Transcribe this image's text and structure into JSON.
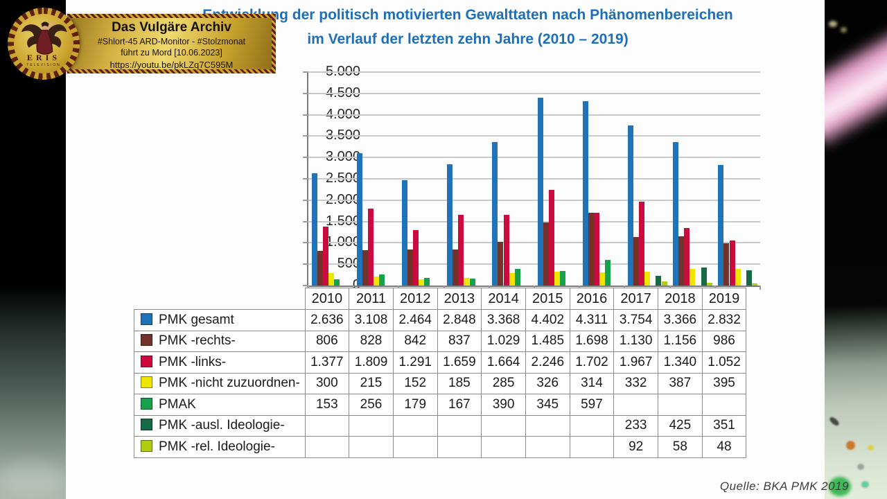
{
  "watermark": {
    "title": "Das Vulgäre Archiv",
    "subtitle": "#Shlort-45 ARD-Monitor - #Stolzmonat",
    "subtitle2": "führt zu Mord [10.06.2023]",
    "url": "https://youtu.be/pkLZq7C595M",
    "logo_name": "ERIS",
    "logo_sub": "TELEVISION"
  },
  "chart_data": {
    "type": "bar",
    "title_line1": "Entwicklung der politisch motivierten Gewalttaten nach Phänomenbereichen",
    "title_line2": "im Verlauf der letzten zehn Jahre (2010 – 2019)",
    "categories": [
      "2010",
      "2011",
      "2012",
      "2013",
      "2014",
      "2015",
      "2016",
      "2017",
      "2018",
      "2019"
    ],
    "series": [
      {
        "name": "PMK gesamt",
        "color": "#1F73B9",
        "values": [
          2636,
          3108,
          2464,
          2848,
          3368,
          4402,
          4311,
          3754,
          3366,
          2832
        ]
      },
      {
        "name": "PMK -rechts-",
        "color": "#73332A",
        "values": [
          806,
          828,
          842,
          837,
          1029,
          1485,
          1698,
          1130,
          1156,
          986
        ]
      },
      {
        "name": "PMK -links-",
        "color": "#CB0A3E",
        "values": [
          1377,
          1809,
          1291,
          1659,
          1664,
          2246,
          1702,
          1967,
          1340,
          1052
        ]
      },
      {
        "name": "PMK -nicht zuzuordnen-",
        "color": "#EFE600",
        "values": [
          300,
          215,
          152,
          185,
          285,
          326,
          314,
          332,
          387,
          395
        ]
      },
      {
        "name": "PMAK",
        "color": "#16A24A",
        "values": [
          153,
          256,
          179,
          167,
          390,
          345,
          597,
          null,
          null,
          null
        ]
      },
      {
        "name": "PMK -ausl. Ideologie-",
        "color": "#166B46",
        "values": [
          null,
          null,
          null,
          null,
          null,
          null,
          null,
          233,
          425,
          351
        ]
      },
      {
        "name": "PMK -rel. Ideologie-",
        "color": "#B0CB12",
        "values": [
          null,
          null,
          null,
          null,
          null,
          null,
          null,
          92,
          58,
          48
        ]
      }
    ],
    "y_ticks": [
      "5.000",
      "4.500",
      "4.000",
      "3.500",
      "3.000",
      "2.500",
      "2.000",
      "1.500",
      "1.000",
      "500",
      "0"
    ],
    "ylim": [
      0,
      5000
    ],
    "grid": true,
    "legend_position": "table-left",
    "source": "Quelle: BKA PMK 2019"
  }
}
